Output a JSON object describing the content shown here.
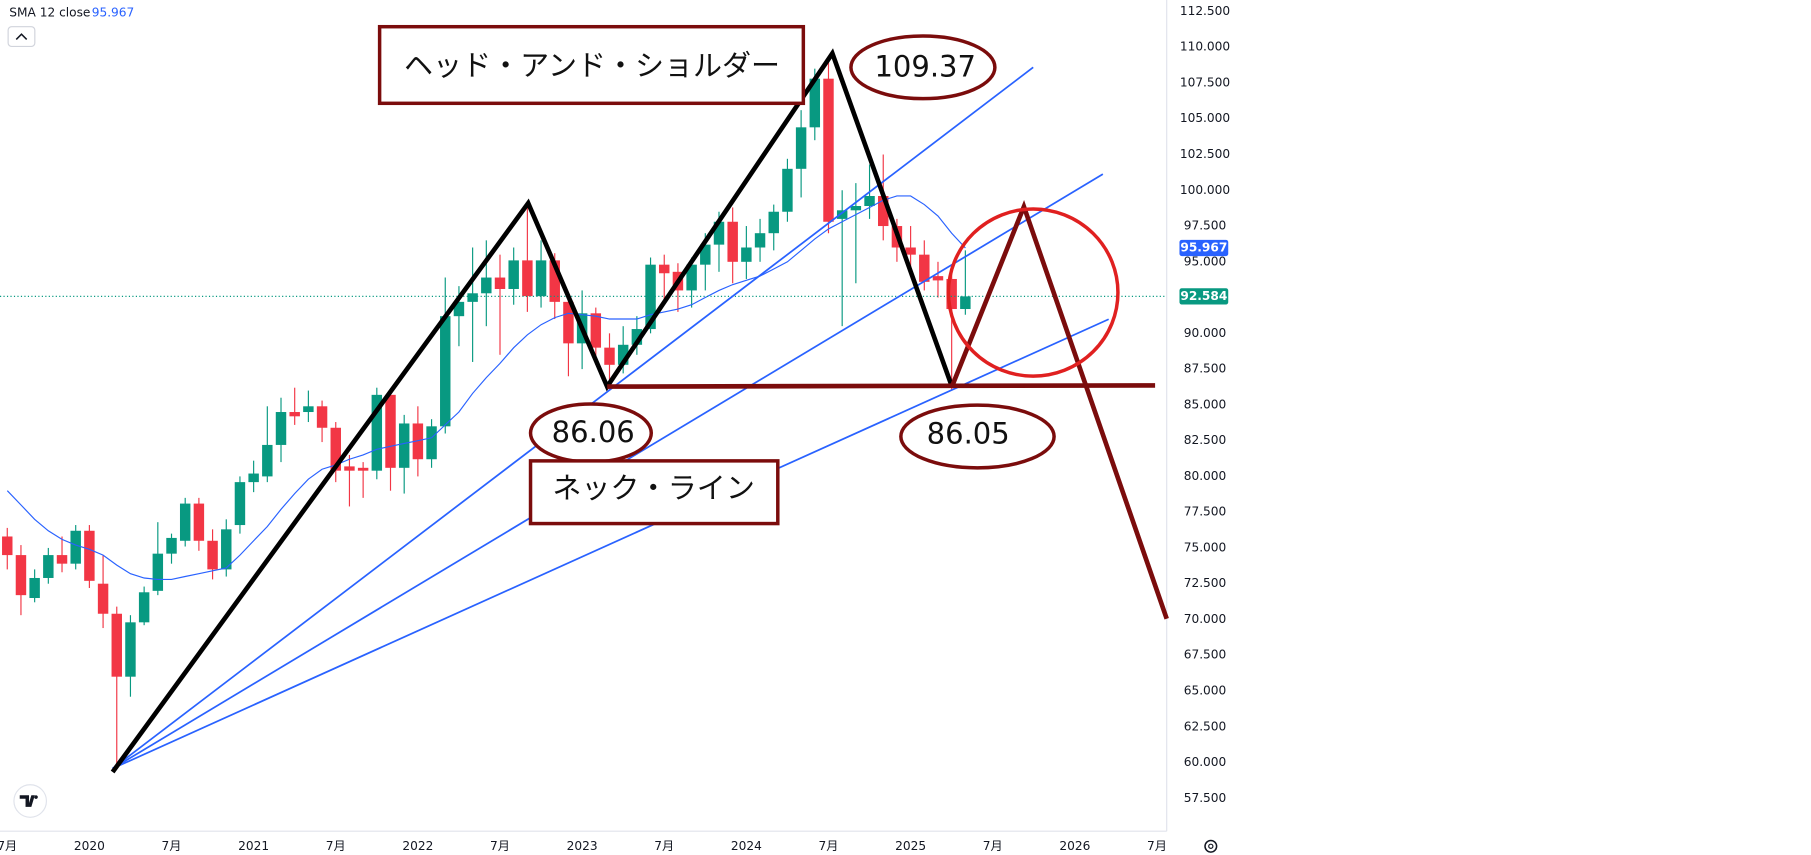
{
  "chart_data": {
    "type": "candlestick",
    "x": [
      "2019-07",
      "2019-08",
      "2019-09",
      "2019-10",
      "2019-11",
      "2019-12",
      "2020-01",
      "2020-02",
      "2020-03",
      "2020-04",
      "2020-05",
      "2020-06",
      "2020-07",
      "2020-08",
      "2020-09",
      "2020-10",
      "2020-11",
      "2020-12",
      "2021-01",
      "2021-02",
      "2021-03",
      "2021-04",
      "2021-05",
      "2021-06",
      "2021-07",
      "2021-08",
      "2021-09",
      "2021-10",
      "2021-11",
      "2021-12",
      "2022-01",
      "2022-02",
      "2022-03",
      "2022-04",
      "2022-05",
      "2022-06",
      "2022-07",
      "2022-08",
      "2022-09",
      "2022-10",
      "2022-11",
      "2022-12",
      "2023-01",
      "2023-02",
      "2023-03",
      "2023-04",
      "2023-05",
      "2023-06",
      "2023-07",
      "2023-08",
      "2023-09",
      "2023-10",
      "2023-11",
      "2023-12",
      "2024-01",
      "2024-02",
      "2024-03",
      "2024-04",
      "2024-05",
      "2024-06",
      "2024-07",
      "2024-08",
      "2024-09",
      "2024-10",
      "2024-11",
      "2024-12",
      "2025-01",
      "2025-02",
      "2025-03",
      "2025-04",
      "2025-05"
    ],
    "open": [
      75.8,
      74.5,
      71.5,
      72.9,
      74.5,
      73.9,
      76.2,
      72.5,
      70.4,
      66.0,
      69.8,
      72.0,
      74.6,
      75.5,
      78.1,
      75.5,
      73.5,
      76.6,
      79.6,
      80.0,
      82.2,
      84.5,
      84.5,
      84.9,
      83.4,
      80.7,
      80.6,
      80.4,
      85.7,
      80.6,
      83.7,
      81.2,
      83.5,
      91.2,
      92.2,
      92.8,
      93.9,
      93.1,
      95.1,
      92.6,
      95.1,
      92.2,
      89.3,
      91.4,
      89.0,
      87.8,
      89.2,
      90.3,
      94.8,
      94.3,
      93.0,
      94.8,
      96.2,
      97.8,
      95.0,
      96.0,
      97.0,
      98.5,
      101.5,
      104.4,
      107.8,
      98.0,
      98.6,
      98.9,
      99.6,
      97.5,
      96.0,
      95.5,
      94.0,
      93.8,
      91.7
    ],
    "high": [
      76.4,
      75.2,
      73.5,
      75.0,
      75.8,
      76.6,
      76.6,
      74.5,
      70.9,
      70.3,
      72.3,
      76.8,
      76.0,
      78.5,
      78.5,
      76.3,
      77.0,
      80.0,
      81.1,
      84.9,
      85.5,
      86.2,
      86.0,
      85.3,
      83.8,
      81.5,
      81.0,
      86.2,
      86.0,
      84.3,
      84.9,
      84.0,
      93.9,
      93.3,
      96.0,
      96.5,
      95.5,
      96.0,
      98.9,
      96.5,
      95.6,
      92.8,
      93.0,
      91.8,
      90.0,
      90.5,
      91.2,
      95.3,
      95.5,
      94.9,
      95.3,
      97.0,
      98.5,
      98.8,
      97.5,
      98.0,
      99.0,
      102.2,
      105.6,
      108.5,
      109.37,
      100.0,
      100.5,
      101.8,
      102.5,
      98.0,
      97.5,
      96.5,
      95.0,
      94.5,
      95.8
    ],
    "low": [
      73.5,
      70.3,
      71.2,
      72.5,
      73.3,
      73.5,
      72.2,
      69.4,
      59.7,
      64.6,
      69.6,
      71.7,
      73.9,
      75.1,
      74.8,
      72.8,
      73.0,
      76.0,
      78.9,
      79.6,
      81.0,
      83.6,
      83.8,
      82.4,
      79.6,
      77.9,
      78.5,
      79.8,
      79.0,
      78.8,
      80.0,
      80.6,
      83.0,
      89.1,
      88.0,
      90.5,
      88.5,
      92.0,
      91.5,
      91.8,
      91.0,
      87.0,
      87.5,
      87.8,
      86.06,
      87.2,
      88.5,
      90.0,
      92.0,
      91.5,
      91.8,
      93.0,
      94.3,
      93.5,
      93.8,
      95.0,
      95.8,
      97.8,
      99.5,
      103.5,
      97.0,
      90.5,
      93.5,
      98.0,
      96.5,
      95.0,
      94.0,
      93.0,
      92.5,
      86.05,
      91.3
    ],
    "close": [
      74.5,
      71.7,
      72.9,
      74.5,
      73.9,
      76.2,
      72.7,
      70.4,
      66.0,
      69.8,
      71.9,
      74.6,
      75.7,
      78.1,
      75.5,
      73.5,
      76.3,
      79.6,
      80.2,
      82.2,
      84.5,
      84.2,
      84.9,
      83.4,
      80.4,
      80.4,
      80.4,
      85.7,
      80.6,
      83.7,
      81.2,
      83.5,
      91.2,
      92.2,
      92.8,
      93.9,
      93.1,
      95.1,
      92.6,
      95.1,
      92.2,
      89.3,
      91.4,
      89.0,
      87.8,
      89.2,
      90.3,
      94.8,
      94.2,
      93.0,
      94.8,
      96.2,
      97.8,
      95.0,
      96.0,
      97.0,
      98.5,
      101.5,
      104.4,
      107.8,
      97.8,
      98.6,
      98.9,
      99.6,
      97.5,
      96.0,
      95.5,
      93.6,
      93.7,
      91.7,
      92.584
    ],
    "up_color": "#089981",
    "down_color": "#f23645",
    "sma": {
      "name": "SMA 12 close",
      "color": "#2962ff",
      "values": [
        79.0,
        78.0,
        77.0,
        76.2,
        75.6,
        75.2,
        74.9,
        74.5,
        73.8,
        73.2,
        72.9,
        72.8,
        72.8,
        73.0,
        73.2,
        73.4,
        73.6,
        74.5,
        75.5,
        76.5,
        77.7,
        78.8,
        79.8,
        80.5,
        80.8,
        81.2,
        81.5,
        81.9,
        82.1,
        82.3,
        82.5,
        82.7,
        83.6,
        84.5,
        85.8,
        86.9,
        87.9,
        89.0,
        89.9,
        90.6,
        91.1,
        91.4,
        91.3,
        91.2,
        91.0,
        91.0,
        91.0,
        91.3,
        91.5,
        91.7,
        92.0,
        92.5,
        93.0,
        93.4,
        93.7,
        94.0,
        94.5,
        95.0,
        95.8,
        96.6,
        97.3,
        97.8,
        98.3,
        98.8,
        99.3,
        99.6,
        99.6,
        99.0,
        98.2,
        97.0,
        95.967
      ]
    },
    "ylim": [
      55.2,
      113.3
    ],
    "yticks": [
      {
        "value": 57.5,
        "label": "57.500"
      },
      {
        "value": 60,
        "label": "60.000"
      },
      {
        "value": 62.5,
        "label": "62.500"
      },
      {
        "value": 65,
        "label": "65.000"
      },
      {
        "value": 67.5,
        "label": "67.500"
      },
      {
        "value": 70,
        "label": "70.000"
      },
      {
        "value": 72.5,
        "label": "72.500"
      },
      {
        "value": 75,
        "label": "75.000"
      },
      {
        "value": 77.5,
        "label": "77.500"
      },
      {
        "value": 80,
        "label": "80.000"
      },
      {
        "value": 82.5,
        "label": "82.500"
      },
      {
        "value": 85,
        "label": "85.000"
      },
      {
        "value": 87.5,
        "label": "87.500"
      },
      {
        "value": 90,
        "label": "90.000"
      },
      {
        "value": 92.5,
        "label": "92.500"
      },
      {
        "value": 95,
        "label": "95.000"
      },
      {
        "value": 97.5,
        "label": "97.500"
      },
      {
        "value": 100,
        "label": "100.000"
      },
      {
        "value": 102.5,
        "label": "102.500"
      },
      {
        "value": 105,
        "label": "105.000"
      },
      {
        "value": 107.5,
        "label": "107.500"
      },
      {
        "value": 110,
        "label": "110.000"
      },
      {
        "value": 112.5,
        "label": "112.500"
      }
    ],
    "xticks": [
      {
        "value": "2019-07",
        "label": "7月"
      },
      {
        "value": "2020-01",
        "label": "2020"
      },
      {
        "value": "2020-07",
        "label": "7月"
      },
      {
        "value": "2021-01",
        "label": "2021"
      },
      {
        "value": "2021-07",
        "label": "7月"
      },
      {
        "value": "2022-01",
        "label": "2022"
      },
      {
        "value": "2022-07",
        "label": "7月"
      },
      {
        "value": "2023-01",
        "label": "2023"
      },
      {
        "value": "2023-07",
        "label": "7月"
      },
      {
        "value": "2024-01",
        "label": "2024"
      },
      {
        "value": "2024-07",
        "label": "7月"
      },
      {
        "value": "2025-01",
        "label": "2025"
      },
      {
        "value": "2025-07",
        "label": "7月"
      },
      {
        "value": "2026-01",
        "label": "2026"
      },
      {
        "value": "2026-07",
        "label": "7月"
      }
    ],
    "annotations": {
      "pattern": "ヘッド・アンド・ショルダー",
      "head": 109.37,
      "left_low": 86.06,
      "right_low": 86.05,
      "neckline": "ネック・ライン"
    }
  }
}
